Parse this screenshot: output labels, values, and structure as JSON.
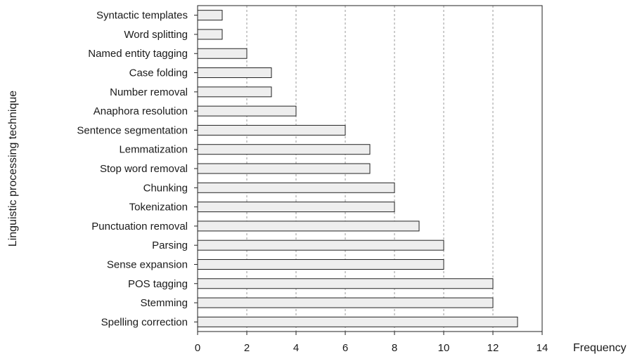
{
  "chart_data": {
    "type": "bar",
    "orientation": "horizontal",
    "title": "",
    "xlabel": "Frequency",
    "ylabel": "Linguistic processing technique",
    "xlim": [
      0,
      14
    ],
    "xticks": [
      0,
      2,
      4,
      6,
      8,
      10,
      12,
      14
    ],
    "grid": true,
    "legend": "none",
    "categories": [
      "Syntactic templates",
      "Word splitting",
      "Named entity tagging",
      "Case folding",
      "Number removal",
      "Anaphora resolution",
      "Sentence segmentation",
      "Lemmatization",
      "Stop word removal",
      "Chunking",
      "Tokenization",
      "Punctuation removal",
      "Parsing",
      "Sense expansion",
      "POS tagging",
      "Stemming",
      "Spelling correction"
    ],
    "values": [
      1,
      1,
      2,
      3,
      3,
      4,
      6,
      7,
      7,
      8,
      8,
      9,
      10,
      10,
      12,
      12,
      13
    ],
    "colors": {
      "bar_fill": "#eeeeee",
      "bar_stroke": "#222222",
      "grid": "#9a9a9a"
    }
  }
}
